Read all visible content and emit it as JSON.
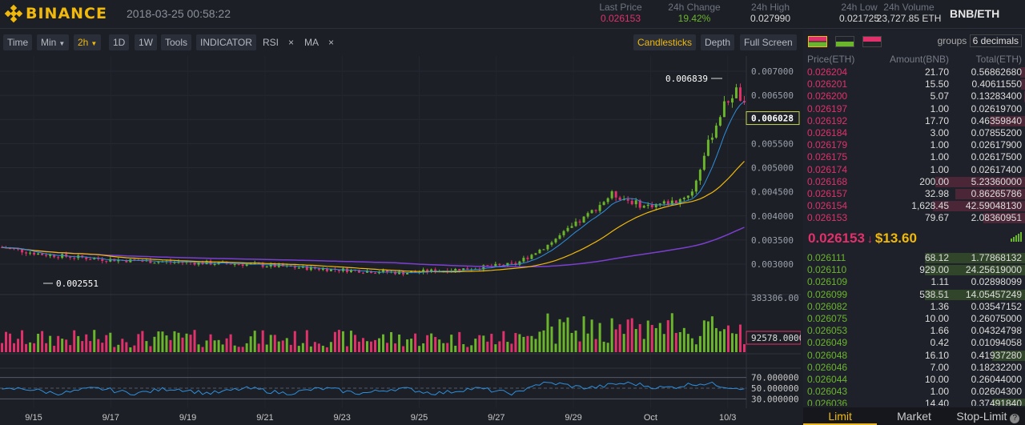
{
  "header": {
    "brand": "BINANCE",
    "datetime": "2018-03-25 00:58:22",
    "pair": "BNB/ETH",
    "stats": [
      {
        "label": "Last Price",
        "value": "0.026153",
        "color": "#e0316b"
      },
      {
        "label": "24h Change",
        "value": "19.42%",
        "color": "#6bb52c"
      },
      {
        "label": "24h High",
        "value": "0.027990",
        "color": "#d8d8d8"
      },
      {
        "label": "24h Low",
        "value": "0.021725",
        "color": "#d8d8d8"
      },
      {
        "label": "24h Volume",
        "value": "23,727.85 ETH",
        "color": "#d8d8d8"
      }
    ]
  },
  "toolbar": {
    "time": "Time",
    "min": "Min",
    "interval": "2h",
    "d1": "1D",
    "w1": "1W",
    "tools": "Tools",
    "indicator": "INDICATOR",
    "rsi": "RSI",
    "ma": "MA",
    "remove": "×",
    "candlesticks": "Candlesticks",
    "depth": "Depth",
    "fullscreen": "Full Screen"
  },
  "chart": {
    "price_ticks": [
      "0.007000",
      "0.006500",
      "0.006000",
      "0.005500",
      "0.005000",
      "0.004500",
      "0.004000",
      "0.003500",
      "0.003000"
    ],
    "current_price": "0.006028",
    "high_label": "0.006839",
    "low_label": "0.002551",
    "volume_max": "383306.00",
    "volume_current": "92578.0000",
    "rsi_ticks": [
      "70.000000",
      "50.000000",
      "30.000000"
    ],
    "dates": [
      "9/15",
      "9/17",
      "9/19",
      "9/21",
      "9/23",
      "9/25",
      "9/27",
      "9/29",
      "Oct",
      "10/3"
    ]
  },
  "orderbook": {
    "groups_label": "groups",
    "groups_value": "6 decimals",
    "headers": [
      "Price(ETH)",
      "Amount(BNB)",
      "Total(ETH)"
    ],
    "sells": [
      [
        "0.026204",
        "21.70",
        "0.56862680",
        0.05
      ],
      [
        "0.026201",
        "15.50",
        "0.40611550",
        0.04
      ],
      [
        "0.026200",
        "5.07",
        "0.13283400",
        0.01
      ],
      [
        "0.026197",
        "1.00",
        "0.02619700",
        0.0
      ],
      [
        "0.026192",
        "17.70",
        "0.46359840",
        0.35
      ],
      [
        "0.026184",
        "3.00",
        "0.07855200",
        0.0
      ],
      [
        "0.026179",
        "1.00",
        "0.02617900",
        0.0
      ],
      [
        "0.026175",
        "1.00",
        "0.02617500",
        0.0
      ],
      [
        "0.026174",
        "1.00",
        "0.02617400",
        0.0
      ],
      [
        "0.026168",
        "200.00",
        "5.23360000",
        0.9
      ],
      [
        "0.026157",
        "32.98",
        "0.86265786",
        0.7
      ],
      [
        "0.026154",
        "1,628.45",
        "42.59048130",
        0.92
      ],
      [
        "0.026153",
        "79.67",
        "2.08360951",
        0.42
      ]
    ],
    "last_price": "0.026153",
    "last_usd": "$13.60",
    "buys": [
      [
        "0.026111",
        "68.12",
        "1.77868132",
        1.0
      ],
      [
        "0.026110",
        "929.00",
        "24.25619000",
        1.0
      ],
      [
        "0.026109",
        "1.11",
        "0.02898099",
        0.0
      ],
      [
        "0.026099",
        "538.51",
        "14.05457249",
        1.0
      ],
      [
        "0.026082",
        "1.36",
        "0.03547152",
        0.0
      ],
      [
        "0.026075",
        "10.00",
        "0.26075000",
        0.0
      ],
      [
        "0.026053",
        "1.66",
        "0.04324798",
        0.0
      ],
      [
        "0.026049",
        "0.42",
        "0.01094058",
        0.0
      ],
      [
        "0.026048",
        "16.10",
        "0.41937280",
        0.33
      ],
      [
        "0.026046",
        "7.00",
        "0.18232200",
        0.0
      ],
      [
        "0.026044",
        "10.00",
        "0.26044000",
        0.0
      ],
      [
        "0.026043",
        "1.00",
        "0.02604300",
        0.0
      ],
      [
        "0.026036",
        "14.40",
        "0.37491840",
        0.33
      ]
    ]
  },
  "tabs": [
    "Limit",
    "Market",
    "Stop-Limit"
  ],
  "colors": {
    "up": "#6bb52c",
    "down": "#e0316b",
    "accent": "#f0b90b",
    "ma_fast": "#2d8fdd",
    "ma_mid": "#f0b90b",
    "ma_slow": "#7b3fd0"
  }
}
